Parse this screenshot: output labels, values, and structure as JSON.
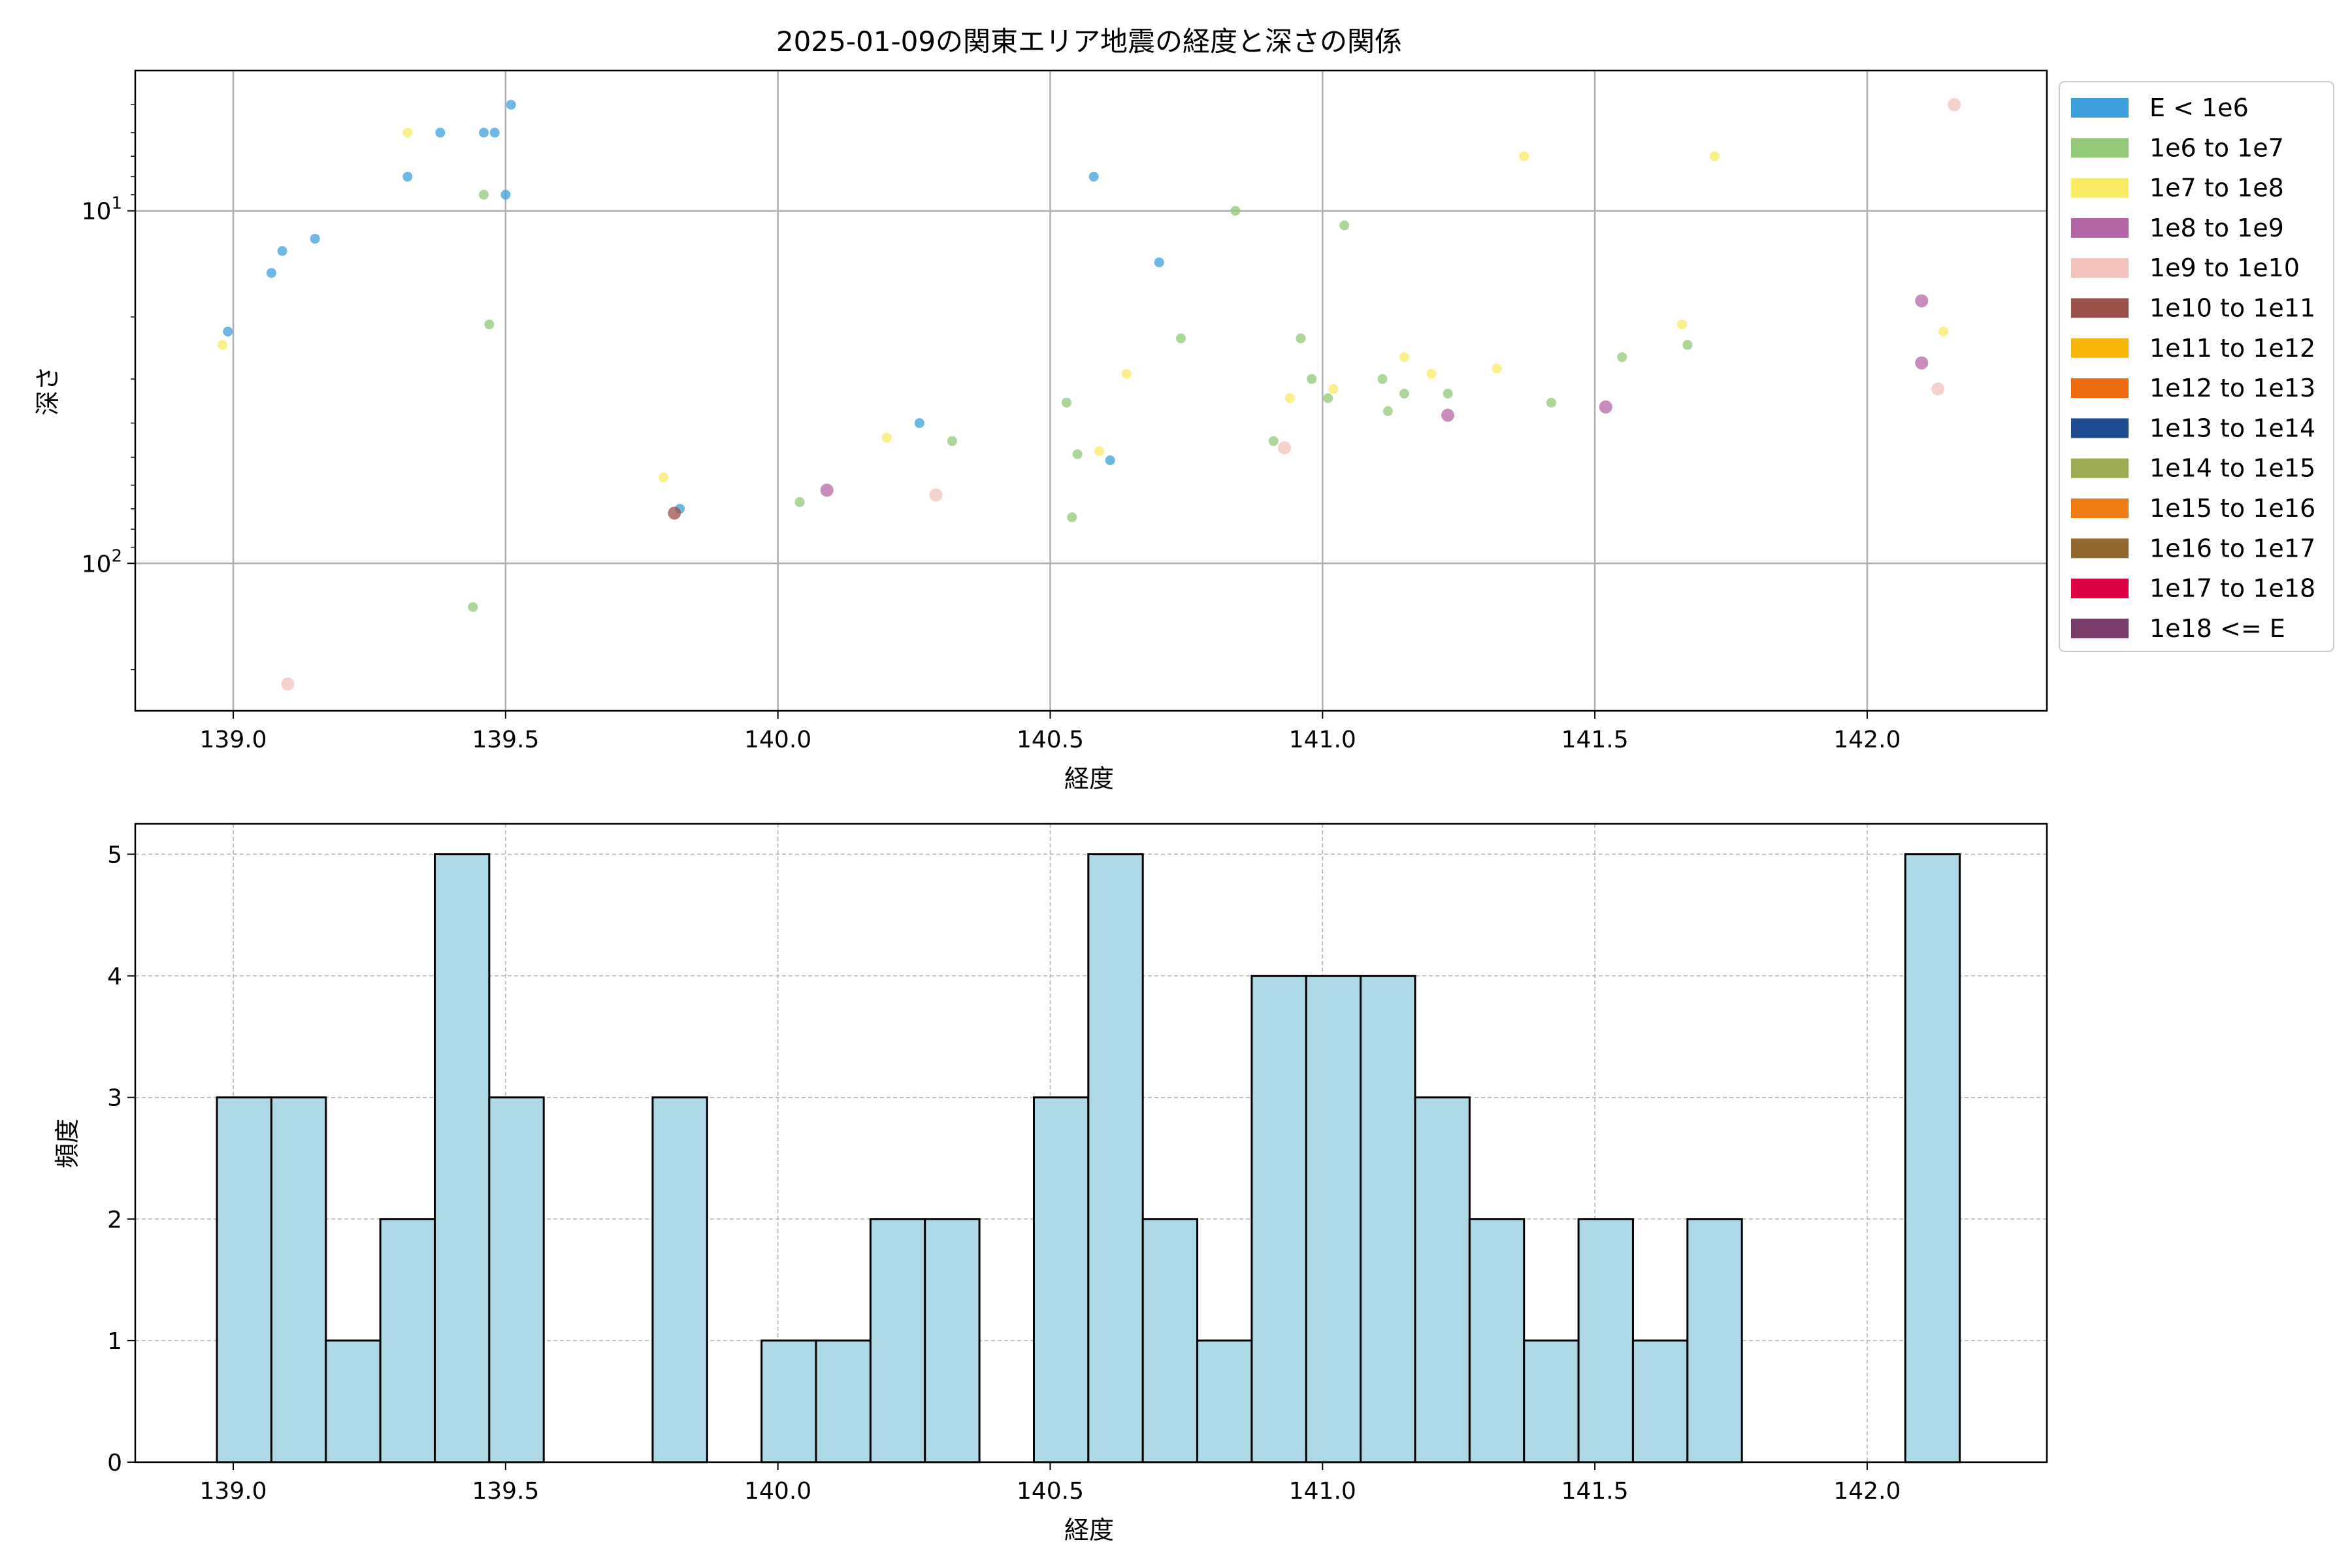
{
  "chart_data": [
    {
      "type": "scatter",
      "title": "2025-01-09の関東エリア地震の経度と深さの関係",
      "xlabel": "経度",
      "ylabel": "深さ",
      "xlim": [
        138.82,
        142.33
      ],
      "ylim": [
        262,
        4.0
      ],
      "y_scale": "log",
      "y_inverted": true,
      "grid": true,
      "xticks": [
        139.0,
        139.5,
        140.0,
        140.5,
        141.0,
        141.5,
        142.0
      ],
      "xtick_labels": [
        "139.0",
        "139.5",
        "140.0",
        "140.5",
        "141.0",
        "141.5",
        "142.0"
      ],
      "yticks": [
        10,
        100
      ],
      "ytick_label_base": "10",
      "ytick_label_exponents": [
        "1",
        "2"
      ],
      "legend": {
        "placement": "outside-right",
        "entries": [
          {
            "label": "E < 1e6",
            "color": "#3f9fdb"
          },
          {
            "label": "1e6 to 1e7",
            "color": "#92c977"
          },
          {
            "label": "1e7 to 1e8",
            "color": "#fbeb64"
          },
          {
            "label": "1e8 to 1e9",
            "color": "#b565a7"
          },
          {
            "label": "1e9 to 1e10",
            "color": "#f4c2bc"
          },
          {
            "label": "1e10 to 1e11",
            "color": "#9b5149"
          },
          {
            "label": "1e11 to 1e12",
            "color": "#f7b709"
          },
          {
            "label": "1e12 to 1e13",
            "color": "#ed6a10"
          },
          {
            "label": "1e13 to 1e14",
            "color": "#1d4c92"
          },
          {
            "label": "1e14 to 1e15",
            "color": "#9eab51"
          },
          {
            "label": "1e15 to 1e16",
            "color": "#ef7c12"
          },
          {
            "label": "1e16 to 1e17",
            "color": "#93682e"
          },
          {
            "label": "1e17 to 1e18",
            "color": "#dc0140"
          },
          {
            "label": "1e18 <= E",
            "color": "#7a3d6b"
          }
        ]
      },
      "points": [
        {
          "x": 138.99,
          "y": 22,
          "c": 0
        },
        {
          "x": 139.07,
          "y": 15,
          "c": 0
        },
        {
          "x": 139.09,
          "y": 13,
          "c": 0
        },
        {
          "x": 139.15,
          "y": 12,
          "c": 0
        },
        {
          "x": 139.32,
          "y": 8,
          "c": 0
        },
        {
          "x": 139.38,
          "y": 6,
          "c": 0
        },
        {
          "x": 139.46,
          "y": 6,
          "c": 0
        },
        {
          "x": 139.48,
          "y": 6,
          "c": 0
        },
        {
          "x": 139.5,
          "y": 9,
          "c": 0
        },
        {
          "x": 139.51,
          "y": 5,
          "c": 0
        },
        {
          "x": 139.82,
          "y": 70,
          "c": 0
        },
        {
          "x": 140.26,
          "y": 40,
          "c": 0
        },
        {
          "x": 140.58,
          "y": 8,
          "c": 0
        },
        {
          "x": 140.61,
          "y": 51,
          "c": 0
        },
        {
          "x": 140.7,
          "y": 14,
          "c": 0
        },
        {
          "x": 139.44,
          "y": 133,
          "c": 1
        },
        {
          "x": 139.46,
          "y": 9,
          "c": 1
        },
        {
          "x": 139.47,
          "y": 21,
          "c": 1
        },
        {
          "x": 140.04,
          "y": 67,
          "c": 1
        },
        {
          "x": 140.32,
          "y": 45,
          "c": 1
        },
        {
          "x": 140.53,
          "y": 35,
          "c": 1
        },
        {
          "x": 140.54,
          "y": 74,
          "c": 1
        },
        {
          "x": 140.55,
          "y": 49,
          "c": 1
        },
        {
          "x": 140.74,
          "y": 23,
          "c": 1
        },
        {
          "x": 140.84,
          "y": 10,
          "c": 1
        },
        {
          "x": 140.91,
          "y": 45,
          "c": 1
        },
        {
          "x": 140.96,
          "y": 23,
          "c": 1
        },
        {
          "x": 140.98,
          "y": 30,
          "c": 1
        },
        {
          "x": 141.01,
          "y": 34,
          "c": 1
        },
        {
          "x": 141.04,
          "y": 11,
          "c": 1
        },
        {
          "x": 141.11,
          "y": 30,
          "c": 1
        },
        {
          "x": 141.12,
          "y": 37,
          "c": 1
        },
        {
          "x": 141.15,
          "y": 33,
          "c": 1
        },
        {
          "x": 141.23,
          "y": 33,
          "c": 1
        },
        {
          "x": 141.42,
          "y": 35,
          "c": 1
        },
        {
          "x": 141.55,
          "y": 26,
          "c": 1
        },
        {
          "x": 141.67,
          "y": 24,
          "c": 1
        },
        {
          "x": 138.98,
          "y": 24,
          "c": 2
        },
        {
          "x": 139.32,
          "y": 6,
          "c": 2
        },
        {
          "x": 139.79,
          "y": 57,
          "c": 2
        },
        {
          "x": 140.2,
          "y": 44,
          "c": 2
        },
        {
          "x": 140.59,
          "y": 48,
          "c": 2
        },
        {
          "x": 140.64,
          "y": 29,
          "c": 2
        },
        {
          "x": 140.94,
          "y": 34,
          "c": 2
        },
        {
          "x": 141.02,
          "y": 32,
          "c": 2
        },
        {
          "x": 141.15,
          "y": 26,
          "c": 2
        },
        {
          "x": 141.2,
          "y": 29,
          "c": 2
        },
        {
          "x": 141.32,
          "y": 28,
          "c": 2
        },
        {
          "x": 141.37,
          "y": 7,
          "c": 2
        },
        {
          "x": 141.66,
          "y": 21,
          "c": 2
        },
        {
          "x": 141.72,
          "y": 7,
          "c": 2
        },
        {
          "x": 142.14,
          "y": 22,
          "c": 2
        },
        {
          "x": 140.09,
          "y": 62,
          "c": 3
        },
        {
          "x": 141.23,
          "y": 38,
          "c": 3
        },
        {
          "x": 141.52,
          "y": 36,
          "c": 3
        },
        {
          "x": 142.1,
          "y": 18,
          "c": 3
        },
        {
          "x": 142.1,
          "y": 27,
          "c": 3
        },
        {
          "x": 139.1,
          "y": 220,
          "c": 4
        },
        {
          "x": 140.29,
          "y": 64,
          "c": 4
        },
        {
          "x": 140.93,
          "y": 47,
          "c": 4
        },
        {
          "x": 142.13,
          "y": 32,
          "c": 4
        },
        {
          "x": 142.16,
          "y": 5,
          "c": 4
        },
        {
          "x": 139.81,
          "y": 72,
          "c": 5
        }
      ]
    },
    {
      "type": "bar",
      "subtype": "histogram",
      "xlabel": "経度",
      "ylabel": "頻度",
      "xlim": [
        138.82,
        142.33
      ],
      "ylim": [
        0,
        5.25
      ],
      "grid": true,
      "bar_color": "#add8e6",
      "edge_color": "#000000",
      "bin_start": 138.97,
      "bin_width": 0.1,
      "values": [
        3,
        3,
        1,
        2,
        5,
        3,
        0,
        0,
        3,
        0,
        1,
        1,
        2,
        2,
        0,
        3,
        5,
        2,
        1,
        4,
        4,
        4,
        3,
        2,
        1,
        2,
        1,
        2,
        0,
        0,
        0,
        5
      ],
      "xticks": [
        139.0,
        139.5,
        140.0,
        140.5,
        141.0,
        141.5,
        142.0
      ],
      "xtick_labels": [
        "139.0",
        "139.5",
        "140.0",
        "140.5",
        "141.0",
        "141.5",
        "142.0"
      ],
      "yticks": [
        0,
        1,
        2,
        3,
        4,
        5
      ],
      "ytick_labels": [
        "0",
        "1",
        "2",
        "3",
        "4",
        "5"
      ]
    }
  ]
}
